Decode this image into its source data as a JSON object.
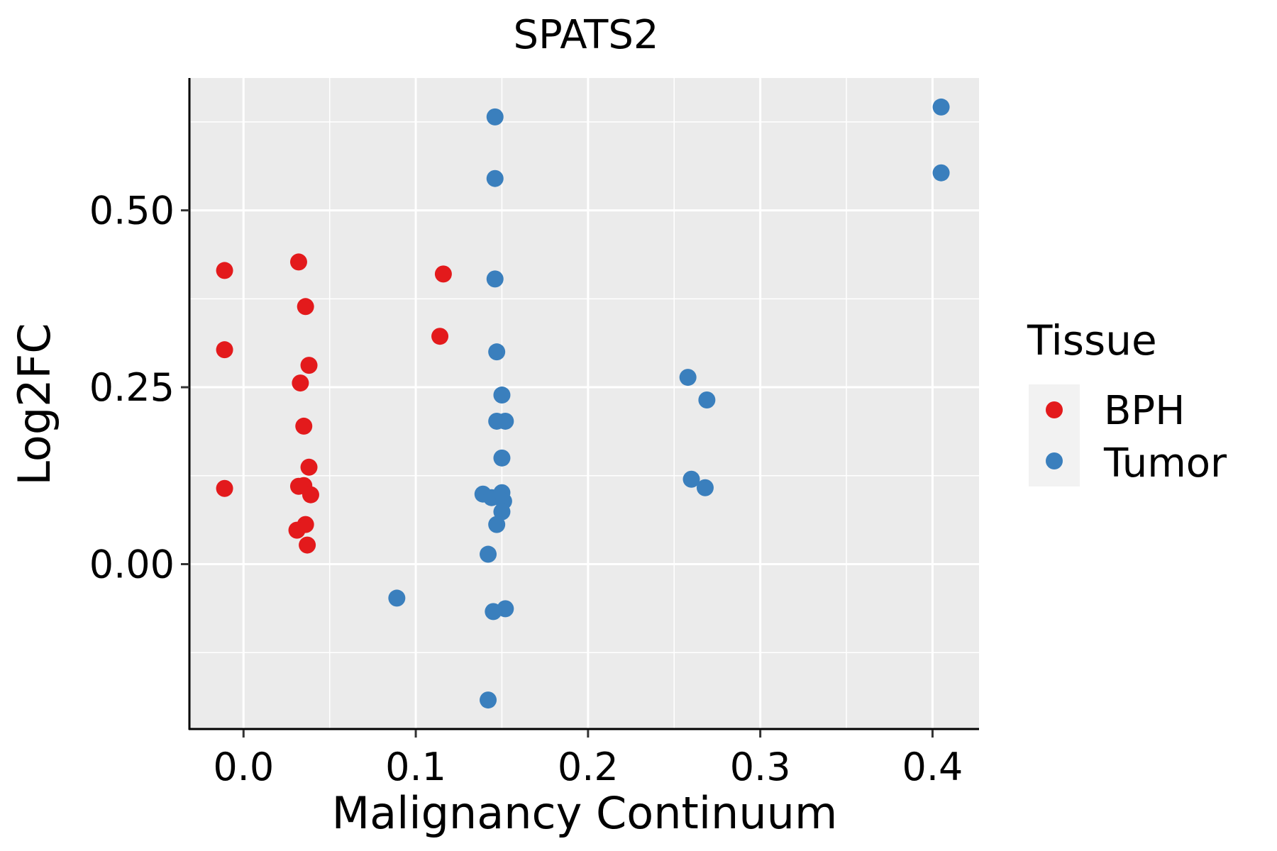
{
  "chart_data": {
    "type": "scatter",
    "title": "SPATS2",
    "xlabel": "Malignancy Continuum",
    "ylabel": "Log2FC",
    "xlim": [
      -0.031,
      0.427
    ],
    "ylim": [
      -0.233,
      0.687
    ],
    "xticks": [
      0.0,
      0.1,
      0.2,
      0.3,
      0.4
    ],
    "xtick_labels": [
      "0.0",
      "0.1",
      "0.2",
      "0.3",
      "0.4"
    ],
    "yticks": [
      0.0,
      0.25,
      0.5
    ],
    "ytick_labels": [
      "0.00",
      "0.25",
      "0.50"
    ],
    "grid": true,
    "legend": {
      "title": "Tissue",
      "position": "right",
      "entries": [
        {
          "name": "BPH",
          "color": "#e31a1c"
        },
        {
          "name": "Tumor",
          "color": "#3a7fbd"
        }
      ]
    },
    "series": [
      {
        "name": "BPH",
        "color": "#e31a1c",
        "points": [
          {
            "x": -0.011,
            "y": 0.415
          },
          {
            "x": -0.011,
            "y": 0.303
          },
          {
            "x": -0.011,
            "y": 0.107
          },
          {
            "x": 0.032,
            "y": 0.427
          },
          {
            "x": 0.036,
            "y": 0.364
          },
          {
            "x": 0.038,
            "y": 0.281
          },
          {
            "x": 0.033,
            "y": 0.256
          },
          {
            "x": 0.035,
            "y": 0.195
          },
          {
            "x": 0.038,
            "y": 0.137
          },
          {
            "x": 0.032,
            "y": 0.11
          },
          {
            "x": 0.035,
            "y": 0.111
          },
          {
            "x": 0.039,
            "y": 0.098
          },
          {
            "x": 0.036,
            "y": 0.056
          },
          {
            "x": 0.031,
            "y": 0.048
          },
          {
            "x": 0.037,
            "y": 0.027
          },
          {
            "x": 0.116,
            "y": 0.41
          },
          {
            "x": 0.114,
            "y": 0.322
          }
        ]
      },
      {
        "name": "Tumor",
        "color": "#3a7fbd",
        "points": [
          {
            "x": 0.146,
            "y": 0.632
          },
          {
            "x": 0.146,
            "y": 0.545
          },
          {
            "x": 0.146,
            "y": 0.403
          },
          {
            "x": 0.147,
            "y": 0.3
          },
          {
            "x": 0.15,
            "y": 0.239
          },
          {
            "x": 0.147,
            "y": 0.202
          },
          {
            "x": 0.152,
            "y": 0.202
          },
          {
            "x": 0.15,
            "y": 0.15
          },
          {
            "x": 0.139,
            "y": 0.099
          },
          {
            "x": 0.144,
            "y": 0.094
          },
          {
            "x": 0.15,
            "y": 0.101
          },
          {
            "x": 0.151,
            "y": 0.089
          },
          {
            "x": 0.15,
            "y": 0.074
          },
          {
            "x": 0.147,
            "y": 0.056
          },
          {
            "x": 0.142,
            "y": 0.014
          },
          {
            "x": 0.089,
            "y": -0.048
          },
          {
            "x": 0.145,
            "y": -0.067
          },
          {
            "x": 0.152,
            "y": -0.063
          },
          {
            "x": 0.142,
            "y": -0.192
          },
          {
            "x": 0.258,
            "y": 0.264
          },
          {
            "x": 0.269,
            "y": 0.232
          },
          {
            "x": 0.26,
            "y": 0.12
          },
          {
            "x": 0.268,
            "y": 0.108
          },
          {
            "x": 0.405,
            "y": 0.646
          },
          {
            "x": 0.405,
            "y": 0.553
          }
        ]
      }
    ]
  }
}
